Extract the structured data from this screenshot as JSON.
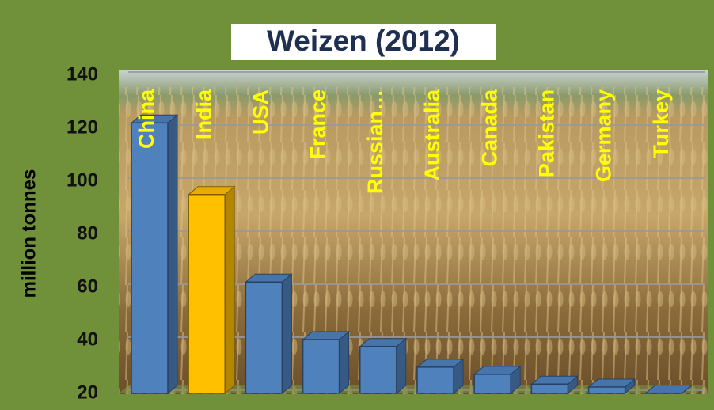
{
  "chart_data": {
    "type": "bar3d",
    "title": "Weizen (2012)",
    "y_label": "million tonnes",
    "categories": [
      "China",
      "India",
      "USA",
      "France",
      "Russian…",
      "Australia",
      "Canada",
      "Pakistan",
      "Germany",
      "Turkey"
    ],
    "values": [
      122,
      95,
      62,
      40.3,
      37.7,
      29.9,
      27.2,
      23.5,
      22.4,
      20.1
    ],
    "colors": [
      "#4f81bd",
      "#ffc000",
      "#4f81bd",
      "#4f81bd",
      "#4f81bd",
      "#4f81bd",
      "#4f81bd",
      "#4f81bd",
      "#4f81bd",
      "#4f81bd"
    ],
    "ylim": [
      20,
      140
    ],
    "yticks": [
      20,
      40,
      60,
      80,
      100,
      120,
      140
    ],
    "grid": true
  }
}
